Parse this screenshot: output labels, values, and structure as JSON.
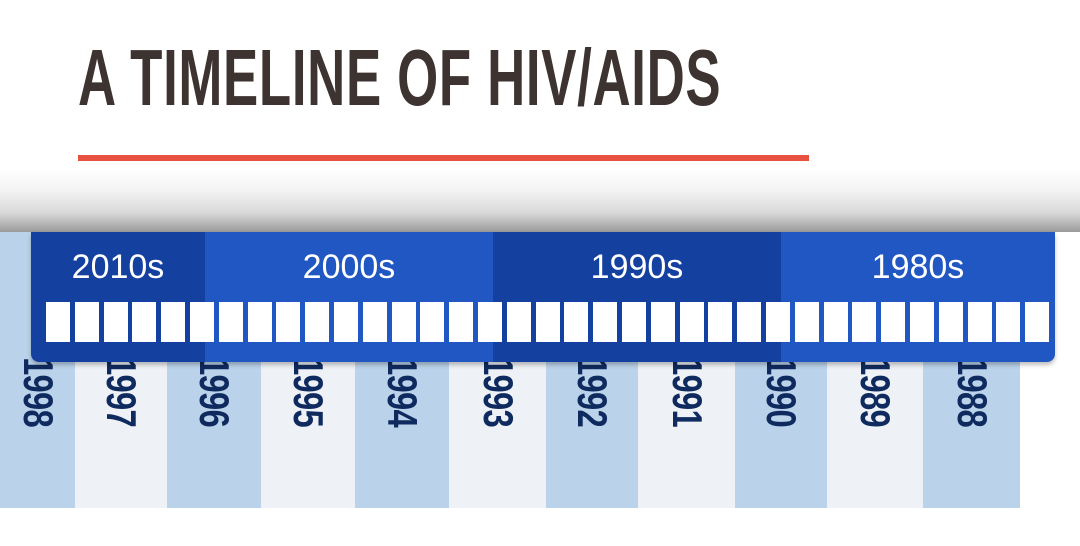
{
  "title": "A TIMELINE OF HIV/AIDS",
  "colors": {
    "title_text": "#3d3330",
    "underline": "#e8513f",
    "decade_dark": "#1440a0",
    "decade_light": "#2057c2",
    "year_dark": "#bbd3ea",
    "year_light": "#eef1f5",
    "year_text": "#0f2a5e"
  },
  "decades": [
    {
      "label": "2010s"
    },
    {
      "label": "2000s"
    },
    {
      "label": "1990s"
    },
    {
      "label": "1980s"
    }
  ],
  "years": [
    "1998",
    "1997",
    "1996",
    "1995",
    "1994",
    "1993",
    "1992",
    "1991",
    "1990",
    "1989",
    "1988"
  ]
}
